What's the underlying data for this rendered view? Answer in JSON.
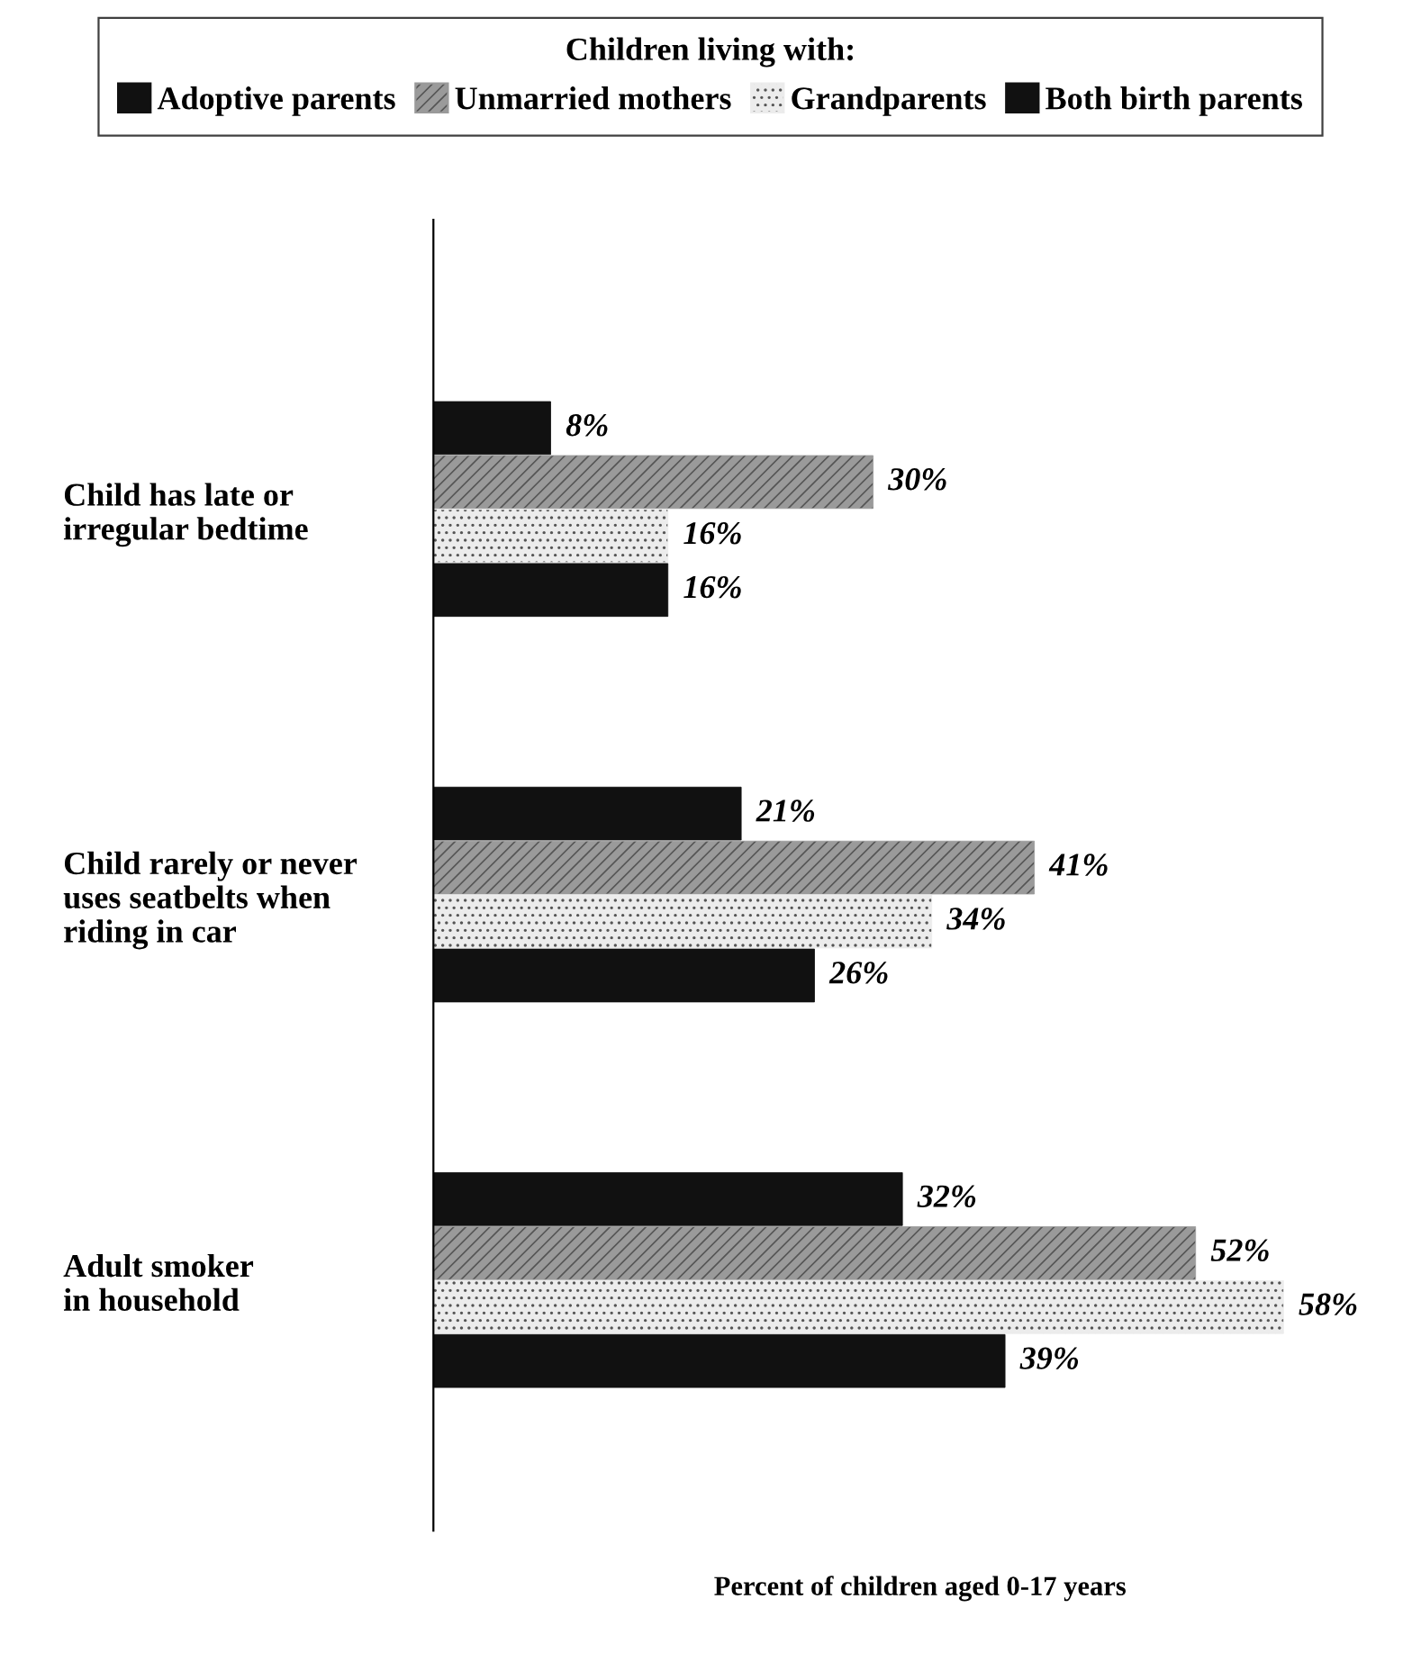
{
  "chart_data": {
    "type": "bar",
    "orientation": "horizontal",
    "categories": [
      "Child has late or\nirregular bedtime",
      "Child rarely or never\nuses seatbelts when\nriding in car",
      "Adult smoker\nin household"
    ],
    "series": [
      {
        "name": "Adoptive parents",
        "color": "#111111",
        "values": [
          8,
          21,
          32
        ],
        "value_labels": [
          "8%",
          "21%",
          "32%"
        ]
      },
      {
        "name": "Unmarried mothers",
        "color": "#9a9a9a",
        "values": [
          30,
          41,
          52
        ],
        "value_labels": [
          "30%",
          "41%",
          "52%"
        ]
      },
      {
        "name": "Grandparents",
        "color": "#ececec",
        "values": [
          16,
          34,
          58
        ],
        "value_labels": [
          "16%",
          "34%",
          "58%"
        ]
      },
      {
        "name": "Both birth parents",
        "color": "#111111",
        "values": [
          16,
          26,
          39
        ],
        "value_labels": [
          "16%",
          "26%",
          "39%"
        ]
      }
    ],
    "legend_title": "Children living with:",
    "legend": "top",
    "xlabel": "Percent of children aged 0-17 years",
    "tick_labels": "y",
    "grid": false
  }
}
